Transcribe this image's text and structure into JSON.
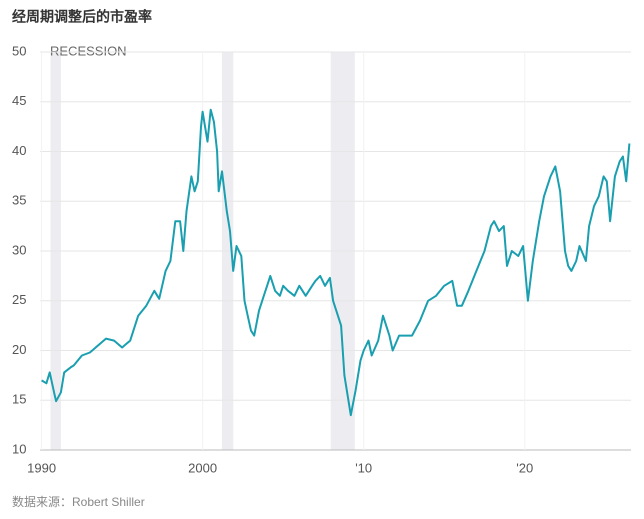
{
  "chart_data": {
    "type": "line",
    "title": "经周期调整后的市盈率",
    "source": "数据来源：Robert Shiller",
    "recession_label": "RECESSION",
    "recessions": [
      [
        1990.55,
        1991.2
      ],
      [
        2001.2,
        2001.9
      ],
      [
        2007.95,
        2009.45
      ]
    ],
    "xlim": [
      1989.9,
      2026.6
    ],
    "xticks": [
      1990,
      2000,
      {
        "value": 2010,
        "label": "'10"
      },
      {
        "value": 2020,
        "label": "'20"
      }
    ],
    "ylim": [
      10,
      50
    ],
    "yticks": [
      10,
      15,
      20,
      25,
      30,
      35,
      40,
      45,
      50
    ],
    "grid": true,
    "series": [
      {
        "color": "#1a9fb0",
        "x": [
          1990.0,
          1990.3,
          1990.5,
          1990.8,
          1990.9,
          1991.2,
          1991.4,
          1991.8,
          1992.0,
          1992.5,
          1993.0,
          1993.5,
          1994.0,
          1994.5,
          1995.0,
          1995.5,
          1996.0,
          1996.5,
          1997.0,
          1997.3,
          1997.7,
          1998.0,
          1998.3,
          1998.6,
          1998.8,
          1999.0,
          1999.3,
          1999.5,
          1999.7,
          1999.9,
          2000.0,
          2000.3,
          2000.5,
          2000.7,
          2000.9,
          2001.0,
          2001.2,
          2001.5,
          2001.7,
          2001.9,
          2002.1,
          2002.4,
          2002.6,
          2002.8,
          2003.0,
          2003.2,
          2003.5,
          2003.8,
          2004.0,
          2004.2,
          2004.5,
          2004.8,
          2005.0,
          2005.3,
          2005.7,
          2006.0,
          2006.4,
          2006.8,
          2007.0,
          2007.3,
          2007.6,
          2007.9,
          2008.1,
          2008.3,
          2008.6,
          2008.8,
          2009.0,
          2009.2,
          2009.5,
          2009.8,
          2010.0,
          2010.3,
          2010.5,
          2010.9,
          2011.2,
          2011.6,
          2011.8,
          2012.2,
          2012.6,
          2013.0,
          2013.5,
          2014.0,
          2014.5,
          2015.0,
          2015.5,
          2015.8,
          2016.1,
          2016.5,
          2017.0,
          2017.5,
          2017.9,
          2018.1,
          2018.4,
          2018.7,
          2018.9,
          2019.2,
          2019.6,
          2019.9,
          2020.2,
          2020.5,
          2020.9,
          2021.2,
          2021.6,
          2021.9,
          2022.2,
          2022.5,
          2022.7,
          2022.9,
          2023.2,
          2023.4,
          2023.8,
          2024.0,
          2024.3,
          2024.6,
          2024.9,
          2025.1,
          2025.3,
          2025.6,
          2025.9,
          2026.1,
          2026.3,
          2026.5
        ],
        "values": [
          17.0,
          16.7,
          17.8,
          15.6,
          14.9,
          15.8,
          17.8,
          18.3,
          18.5,
          19.5,
          19.8,
          20.5,
          21.2,
          21.0,
          20.3,
          21.0,
          23.5,
          24.5,
          26.0,
          25.2,
          28.0,
          29.0,
          33.0,
          33.0,
          30.0,
          34.0,
          37.5,
          36.0,
          37.0,
          42.5,
          44.0,
          41.0,
          44.2,
          43.0,
          40.0,
          36.0,
          38.0,
          34.0,
          32.0,
          28.0,
          30.5,
          29.5,
          25.0,
          23.5,
          22.0,
          21.5,
          24.0,
          25.5,
          26.5,
          27.5,
          26.0,
          25.5,
          26.5,
          26.0,
          25.5,
          26.5,
          25.5,
          26.5,
          27.0,
          27.5,
          26.5,
          27.3,
          25.0,
          24.0,
          22.5,
          17.5,
          15.5,
          13.5,
          16.0,
          19.0,
          20.0,
          21.0,
          19.5,
          21.0,
          23.5,
          21.5,
          20.0,
          21.5,
          21.5,
          21.5,
          23.0,
          25.0,
          25.5,
          26.5,
          27.0,
          24.5,
          24.5,
          26.0,
          28.0,
          30.0,
          32.5,
          33.0,
          32.0,
          32.5,
          28.5,
          30.0,
          29.5,
          30.5,
          25.0,
          29.0,
          33.0,
          35.5,
          37.5,
          38.5,
          36.0,
          30.0,
          28.5,
          28.0,
          29.0,
          30.5,
          29.0,
          32.5,
          34.5,
          35.5,
          37.5,
          37.0,
          33.0,
          37.5,
          39.0,
          39.5,
          37.0,
          40.8
        ]
      }
    ]
  }
}
